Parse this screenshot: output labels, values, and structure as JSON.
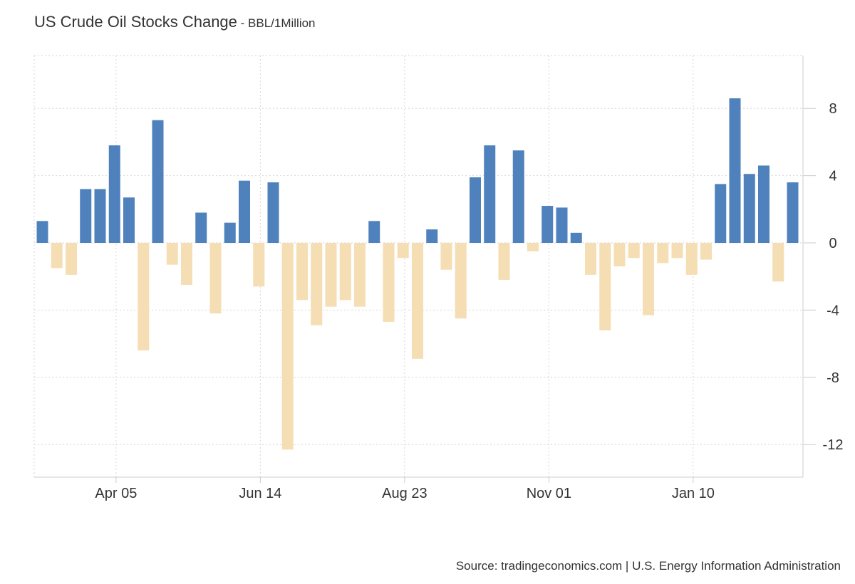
{
  "header": {
    "title": "US Crude Oil Stocks Change",
    "separator": " - ",
    "unit": "BBL/1Million"
  },
  "footer": {
    "source": "Source: tradingeconomics.com | U.S. Energy Information Administration"
  },
  "colors": {
    "positive": "#4f81bd",
    "negative": "#f5deb3",
    "grid": "#d6d6d6",
    "axis": "#cccccc",
    "text": "#333333"
  },
  "chart_data": {
    "type": "bar",
    "title": "US Crude Oil Stocks Change",
    "subtitle": "BBL/1Million",
    "xlabel": "",
    "ylabel": "",
    "ylim": [
      -14,
      11
    ],
    "grid": true,
    "y_axis_side": "right",
    "y_ticks": [
      8,
      4,
      0,
      -4,
      -8,
      -12
    ],
    "x_tick_labels": [
      {
        "label": "Apr 05",
        "index": 5.5
      },
      {
        "label": "Jun 14",
        "index": 15.5
      },
      {
        "label": "Aug 23",
        "index": 25.5
      },
      {
        "label": "Nov 01",
        "index": 35.5
      },
      {
        "label": "Jan 10",
        "index": 45.5
      }
    ],
    "values": [
      1.3,
      -1.5,
      -1.9,
      3.2,
      3.2,
      5.8,
      2.7,
      -6.4,
      7.3,
      -1.3,
      -2.5,
      1.8,
      -4.2,
      1.2,
      3.7,
      -2.6,
      3.6,
      -12.3,
      -3.4,
      -4.9,
      -3.8,
      -3.4,
      -3.8,
      1.3,
      -4.7,
      -0.9,
      -6.9,
      0.8,
      -1.6,
      -4.5,
      3.9,
      5.8,
      -2.2,
      5.5,
      -0.5,
      2.2,
      2.1,
      0.6,
      -1.9,
      -5.2,
      -1.4,
      -0.9,
      -4.3,
      -1.2,
      -0.9,
      -1.9,
      -1.0,
      3.5,
      8.6,
      4.1,
      4.6,
      -2.3,
      3.6
    ]
  }
}
